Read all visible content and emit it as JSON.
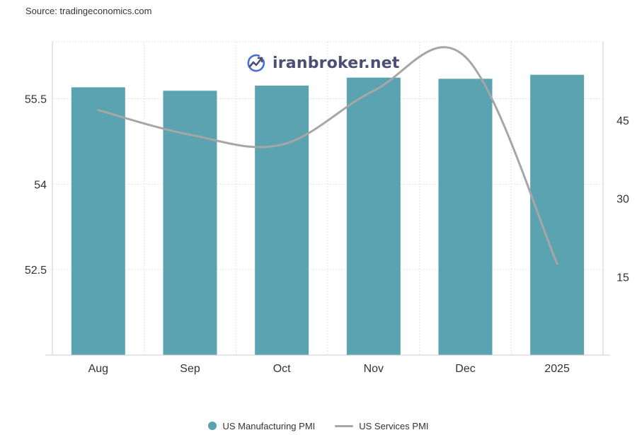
{
  "source": "Source: tradingeconomics.com",
  "watermark": {
    "text": "iranbroker.net",
    "icon": "trend-chart-icon"
  },
  "chart_data": {
    "type": "bar",
    "title": "",
    "categories": [
      "Aug",
      "Sep",
      "Oct",
      "Nov",
      "Dec",
      "2025"
    ],
    "series": [
      {
        "name": "US Manufacturing PMI",
        "type": "bar",
        "axis": "left",
        "color": "#5ba3b0",
        "values": [
          55.7,
          55.64,
          55.73,
          55.87,
          55.85,
          55.92
        ]
      },
      {
        "name": "US Services PMI",
        "type": "line",
        "axis": "right",
        "color": "#a6a6a6",
        "values": [
          46.9,
          42.2,
          40.3,
          50.6,
          57.1,
          17.5
        ]
      }
    ],
    "left_axis": {
      "ticks": [
        "52.5",
        "54",
        "55.5"
      ],
      "tick_values": [
        52.5,
        54,
        55.5
      ],
      "ylim": [
        51,
        56.5
      ]
    },
    "right_axis": {
      "ticks": [
        "15",
        "30",
        "45"
      ],
      "tick_values": [
        15,
        30,
        45
      ],
      "ylim": [
        0,
        60
      ]
    },
    "grid": true,
    "legend_position": "bottom"
  }
}
